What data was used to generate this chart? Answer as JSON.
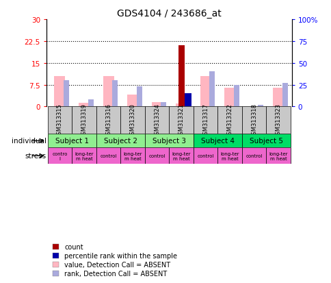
{
  "title": "GDS4104 / 243686_at",
  "samples": [
    "GSM313315",
    "GSM313319",
    "GSM313316",
    "GSM313320",
    "GSM313324",
    "GSM313321",
    "GSM313317",
    "GSM313322",
    "GSM313318",
    "GSM313323"
  ],
  "count_values": [
    0,
    0,
    0,
    0,
    0,
    21,
    0,
    0,
    0,
    0
  ],
  "percentile_rank": [
    null,
    null,
    null,
    null,
    null,
    15,
    null,
    null,
    null,
    null
  ],
  "value_absent": [
    10.5,
    1.2,
    10.5,
    4.0,
    1.5,
    1.0,
    10.5,
    6.5,
    0.2,
    6.5
  ],
  "rank_absent": [
    30,
    8,
    30,
    23,
    5,
    null,
    40,
    25,
    2,
    27
  ],
  "subject_groups": [
    {
      "label": "Subject 1",
      "start": 0,
      "end": 2,
      "color": "#90EE90"
    },
    {
      "label": "Subject 2",
      "start": 2,
      "end": 4,
      "color": "#90EE90"
    },
    {
      "label": "Subject 3",
      "start": 4,
      "end": 6,
      "color": "#90EE90"
    },
    {
      "label": "Subject 4",
      "start": 6,
      "end": 8,
      "color": "#00DD66"
    },
    {
      "label": "Subject 5",
      "start": 8,
      "end": 10,
      "color": "#00DD66"
    }
  ],
  "stress_labels": [
    "contro\nl",
    "long-ter\nm heat",
    "control",
    "long-ter\nm heat",
    "control",
    "long-ter\nm heat",
    "control",
    "long-ter\nm heat",
    "control",
    "long-ter\nm heat"
  ],
  "stress_color": "#EE66CC",
  "ylim_left": [
    0,
    30
  ],
  "ylim_right": [
    0,
    100
  ],
  "yticks_left": [
    0,
    7.5,
    15,
    22.5,
    30
  ],
  "ytick_labels_left": [
    "0",
    "7.5",
    "15",
    "22.5",
    "30"
  ],
  "yticks_right": [
    0,
    25,
    50,
    75,
    100
  ],
  "ytick_labels_right": [
    "0",
    "25",
    "50",
    "75",
    "100%"
  ],
  "color_count": "#AA0000",
  "color_percentile": "#0000AA",
  "color_value_absent": "#FFB6C1",
  "color_rank_absent": "#AAAADD",
  "legend": [
    {
      "label": "count",
      "color": "#AA0000"
    },
    {
      "label": "percentile rank within the sample",
      "color": "#0000AA"
    },
    {
      "label": "value, Detection Call = ABSENT",
      "color": "#FFB6C1"
    },
    {
      "label": "rank, Detection Call = ABSENT",
      "color": "#AAAADD"
    }
  ],
  "gray_bg": "#C8C8C8",
  "value_bar_width": 0.25,
  "rank_bar_width": 0.15
}
